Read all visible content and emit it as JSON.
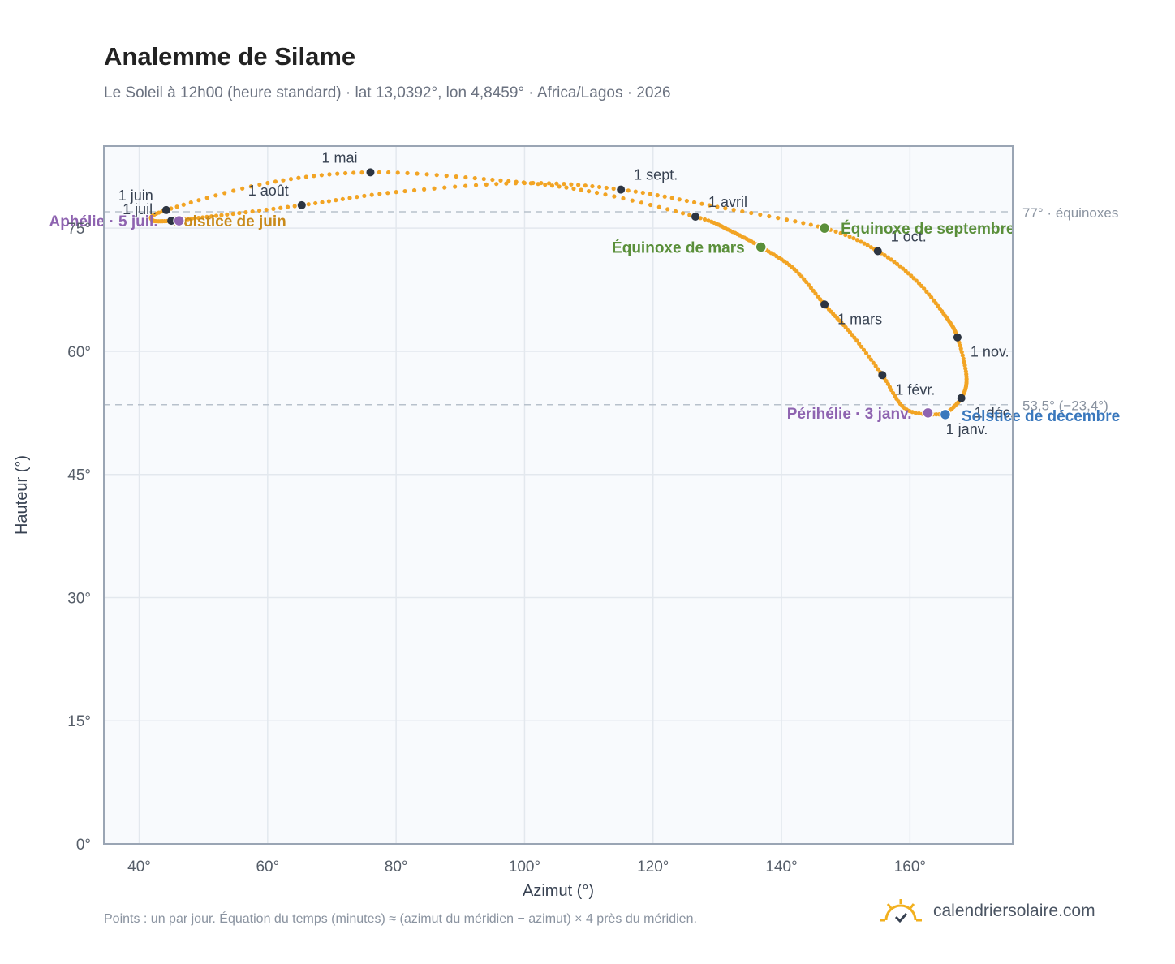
{
  "header": {
    "title": "Analemme de Silame",
    "subtitle": "Le Soleil à 12h00 (heure standard) · lat 13,0392°, lon 4,8459° · Africa/Lagos · 2026"
  },
  "footer": {
    "note": "Points : un par jour. Équation du temps (minutes) ≈ (azimut du méridien − azimut) × 4 près du méridien.",
    "brand": "calendriersolaire.com",
    "brand_icon": "sun-check-icon"
  },
  "colors": {
    "curve": "#f2a424",
    "month_marker": "#2d3542",
    "equinox": "#5a8f3a",
    "june_solstice": "#c98a1a",
    "december_solstice": "#3a78bd",
    "aphelion_perihelion": "#8e63b0",
    "reference_line": "#b8c1cc",
    "plot_background": "#f8fafd"
  },
  "chart_data": {
    "type": "scatter",
    "title": "Analemme de Silame",
    "xlabel": "Azimut (°)",
    "ylabel": "Hauteur (°)",
    "xlim": [
      34.5,
      176
    ],
    "ylim": [
      0,
      85
    ],
    "x_ticks": [
      40,
      60,
      80,
      100,
      120,
      140,
      160
    ],
    "x_tick_labels": [
      "40°",
      "60°",
      "80°",
      "100°",
      "120°",
      "140°",
      "160°"
    ],
    "y_ticks": [
      0,
      15,
      30,
      45,
      60,
      75
    ],
    "y_tick_labels": [
      "0°",
      "15°",
      "30°",
      "45°",
      "60°",
      "75°"
    ],
    "grid": true,
    "reference_lines": [
      {
        "y": 77.0,
        "label": "77° · équinoxes"
      },
      {
        "y": 53.5,
        "label": "53,5° (−23,4°)"
      }
    ],
    "month_markers": [
      {
        "label": "1 janv.",
        "az": 165.6,
        "alt": 52.3
      },
      {
        "label": "1 févr.",
        "az": 155.7,
        "alt": 57.1
      },
      {
        "label": "1 mars",
        "az": 146.7,
        "alt": 65.7
      },
      {
        "label": "1 avril",
        "az": 126.6,
        "alt": 76.4
      },
      {
        "label": "1 mai",
        "az": 76.0,
        "alt": 81.8
      },
      {
        "label": "1 juin",
        "az": 44.2,
        "alt": 77.2
      },
      {
        "label": "1 juil.",
        "az": 45.0,
        "alt": 75.9
      },
      {
        "label": "1 août",
        "az": 65.3,
        "alt": 77.8
      },
      {
        "label": "1 sept.",
        "az": 115.0,
        "alt": 79.7
      },
      {
        "label": "1 oct.",
        "az": 155.0,
        "alt": 72.2
      },
      {
        "label": "1 nov.",
        "az": 167.4,
        "alt": 61.7
      },
      {
        "label": "1 déc.",
        "az": 168.0,
        "alt": 54.3
      }
    ],
    "events": [
      {
        "label": "Équinoxe de mars",
        "az": 136.8,
        "alt": 72.7,
        "kind": "equinox"
      },
      {
        "label": "Équinoxe de septembre",
        "az": 146.7,
        "alt": 75.0,
        "kind": "equinox"
      },
      {
        "label": "Solstice de juin",
        "az": 46.3,
        "alt": 75.9,
        "kind": "june_solstice"
      },
      {
        "label": "Solstice de décembre",
        "az": 165.5,
        "alt": 52.3,
        "kind": "december_solstice"
      },
      {
        "label": "Aphélie · 5 juil.",
        "az": 46.2,
        "alt": 75.9,
        "kind": "aphelion"
      },
      {
        "label": "Périhélie · 3 janv.",
        "az": 162.8,
        "alt": 52.5,
        "kind": "perihelion"
      }
    ],
    "series": [
      {
        "points": [
          [
            165.6,
            52.3
          ],
          [
            159.5,
            52.9
          ],
          [
            155.7,
            57.1
          ],
          [
            151.0,
            62.0
          ],
          [
            146.7,
            65.7
          ],
          [
            142.0,
            70.0
          ],
          [
            136.8,
            72.7
          ],
          [
            132.0,
            74.7
          ],
          [
            126.6,
            76.4
          ],
          [
            110.0,
            79.5
          ],
          [
            95.0,
            80.9
          ],
          [
            76.0,
            81.8
          ],
          [
            60.0,
            80.5
          ],
          [
            44.2,
            77.2
          ],
          [
            42.0,
            76.0
          ],
          [
            45.0,
            75.9
          ],
          [
            52.0,
            76.5
          ],
          [
            65.3,
            77.8
          ],
          [
            80.0,
            79.4
          ],
          [
            100.0,
            80.5
          ],
          [
            115.0,
            79.7
          ],
          [
            130.0,
            77.6
          ],
          [
            146.7,
            75.0
          ],
          [
            155.0,
            72.2
          ],
          [
            161.0,
            68.6
          ],
          [
            165.5,
            64.3
          ],
          [
            167.4,
            61.7
          ],
          [
            168.8,
            56.9
          ],
          [
            168.0,
            54.3
          ],
          [
            165.5,
            52.3
          ]
        ]
      }
    ]
  }
}
